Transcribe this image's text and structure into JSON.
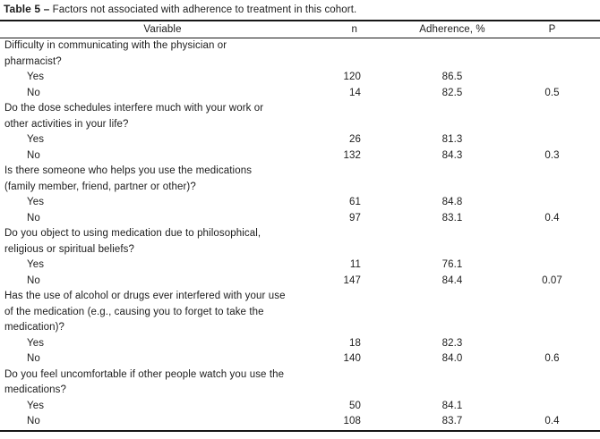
{
  "page": {
    "background_color": "#ffffff",
    "text_color": "#1c1c1c",
    "rule_color": "#161616"
  },
  "table": {
    "title": {
      "label": "Table 5 –",
      "text": "Factors not associated with adherence to treatment in this cohort."
    },
    "columns": {
      "variable": "Variable",
      "n": "n",
      "adherence": "Adherence, %",
      "p": "P"
    },
    "sections": [
      {
        "question_lines": [
          "Difficulty in communicating with the physician or",
          "pharmacist?"
        ],
        "rows": [
          {
            "label": "Yes",
            "n": "120",
            "adherence": "86.5",
            "p": ""
          },
          {
            "label": "No",
            "n": "14",
            "adherence": "82.5",
            "p": "0.5"
          }
        ]
      },
      {
        "question_lines": [
          "Do the dose schedules interfere much with your work or",
          "other activities in your life?"
        ],
        "rows": [
          {
            "label": "Yes",
            "n": "26",
            "adherence": "81.3",
            "p": ""
          },
          {
            "label": "No",
            "n": "132",
            "adherence": "84.3",
            "p": "0.3"
          }
        ]
      },
      {
        "question_lines": [
          "Is there someone who helps you use the medications",
          "(family member, friend, partner or other)?"
        ],
        "rows": [
          {
            "label": "Yes",
            "n": "61",
            "adherence": "84.8",
            "p": ""
          },
          {
            "label": "No",
            "n": "97",
            "adherence": "83.1",
            "p": "0.4"
          }
        ]
      },
      {
        "question_lines": [
          "Do you object to using medication due to philosophical,",
          "religious or spiritual beliefs?"
        ],
        "rows": [
          {
            "label": "Yes",
            "n": "11",
            "adherence": "76.1",
            "p": ""
          },
          {
            "label": "No",
            "n": "147",
            "adherence": "84.4",
            "p": "0.07"
          }
        ]
      },
      {
        "question_lines": [
          "Has the use of alcohol or drugs ever interfered with your use",
          "of the medication (e.g., causing you to forget to take the",
          "medication)?"
        ],
        "rows": [
          {
            "label": "Yes",
            "n": "18",
            "adherence": "82.3",
            "p": ""
          },
          {
            "label": "No",
            "n": "140",
            "adherence": "84.0",
            "p": "0.6"
          }
        ]
      },
      {
        "question_lines": [
          "Do you feel uncomfortable if other people watch you use the",
          "medications?"
        ],
        "rows": [
          {
            "label": "Yes",
            "n": "50",
            "adherence": "84.1",
            "p": ""
          },
          {
            "label": "No",
            "n": "108",
            "adherence": "83.7",
            "p": "0.4"
          }
        ]
      }
    ]
  }
}
